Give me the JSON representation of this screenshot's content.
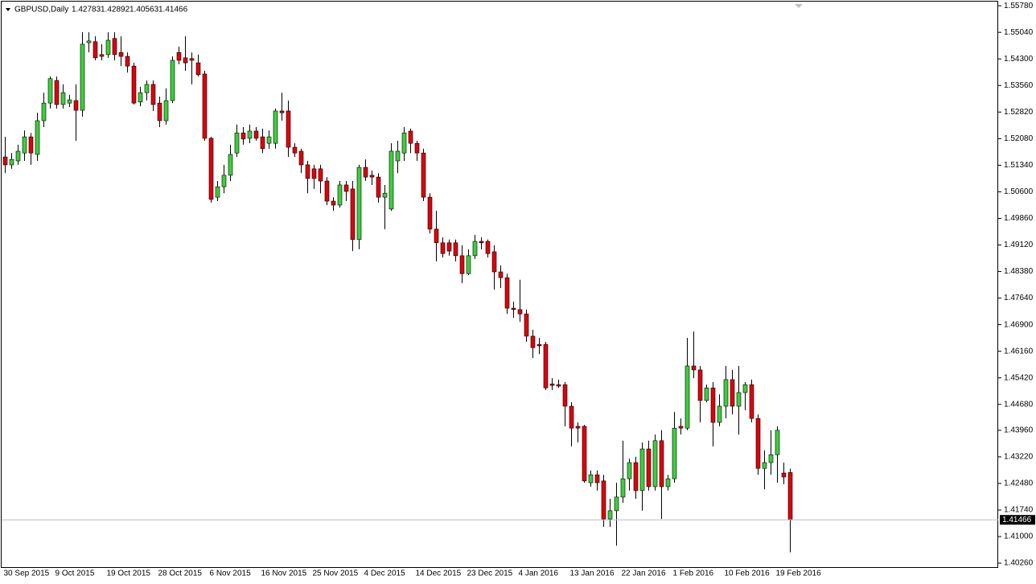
{
  "chart_data": {
    "type": "candlestick",
    "symbol_title": "GBPUSD,Daily",
    "colors": {
      "up": "#3ccf3c",
      "down": "#e0000b",
      "wick": "#000000"
    },
    "ylim": [
      1.4015,
      1.5594
    ],
    "yticks": [
      {
        "value": 1.5578,
        "label": "1.55780"
      },
      {
        "value": 1.5504,
        "label": "1.55040"
      },
      {
        "value": 1.543,
        "label": "1.54300"
      },
      {
        "value": 1.5356,
        "label": "1.53560"
      },
      {
        "value": 1.5282,
        "label": "1.52820"
      },
      {
        "value": 1.5208,
        "label": "1.52080"
      },
      {
        "value": 1.5134,
        "label": "1.51340"
      },
      {
        "value": 1.506,
        "label": "1.50600"
      },
      {
        "value": 1.4986,
        "label": "1.49860"
      },
      {
        "value": 1.4912,
        "label": "1.49120"
      },
      {
        "value": 1.4838,
        "label": "1.48380"
      },
      {
        "value": 1.4764,
        "label": "1.47640"
      },
      {
        "value": 1.469,
        "label": "1.46900"
      },
      {
        "value": 1.4616,
        "label": "1.46160"
      },
      {
        "value": 1.4542,
        "label": "1.45420"
      },
      {
        "value": 1.4468,
        "label": "1.44680"
      },
      {
        "value": 1.4396,
        "label": "1.43960"
      },
      {
        "value": 1.4322,
        "label": "1.43220"
      },
      {
        "value": 1.4248,
        "label": "1.42480"
      },
      {
        "value": 1.4174,
        "label": "1.41740"
      },
      {
        "value": 1.41,
        "label": "1.41000"
      },
      {
        "value": 1.4026,
        "label": "1.40260"
      }
    ],
    "categories": [
      "30 Sep 2015",
      null,
      null,
      null,
      null,
      null,
      null,
      null,
      "9 Oct 2015",
      null,
      null,
      null,
      null,
      null,
      null,
      null,
      "19 Oct 2015",
      null,
      null,
      null,
      null,
      null,
      null,
      null,
      "28 Oct 2015",
      null,
      null,
      null,
      null,
      null,
      null,
      null,
      "6 Nov 2015",
      null,
      null,
      null,
      null,
      null,
      null,
      null,
      "16 Nov 2015",
      null,
      null,
      null,
      null,
      null,
      null,
      null,
      "25 Nov 2015",
      null,
      null,
      null,
      null,
      null,
      null,
      null,
      "4 Dec 2015",
      null,
      null,
      null,
      null,
      null,
      null,
      null,
      "14 Dec 2015",
      null,
      null,
      null,
      null,
      null,
      null,
      null,
      "23 Dec 2015",
      null,
      null,
      null,
      null,
      null,
      null,
      null,
      "4 Jan 2016",
      null,
      null,
      null,
      null,
      null,
      null,
      null,
      "13 Jan 2016",
      null,
      null,
      null,
      null,
      null,
      null,
      null,
      "22 Jan 2016",
      null,
      null,
      null,
      null,
      null,
      null,
      null,
      "1 Feb 2016",
      null,
      null,
      null,
      null,
      null,
      null,
      null,
      "10 Feb 2016",
      null,
      null,
      null,
      null,
      null,
      null,
      null,
      "19 Feb 2016",
      null,
      null
    ],
    "open": [
      1.5157,
      1.5135,
      1.5146,
      1.5168,
      1.5213,
      1.5164,
      1.5258,
      1.5307,
      1.537,
      1.5303,
      1.5307,
      1.5314,
      1.5287,
      1.5475,
      1.5478,
      1.5442,
      1.5442,
      1.5487,
      1.5448,
      1.5437,
      1.541,
      1.531,
      1.5336,
      1.5359,
      1.5307,
      1.5258,
      1.5314,
      1.5448,
      1.5433,
      1.5431,
      1.5419,
      1.5388,
      1.5209,
      1.5045,
      1.5074,
      1.5106,
      1.5168,
      1.5224,
      1.5209,
      1.5229,
      1.5213,
      1.5195,
      1.5195,
      1.5285,
      1.5285,
      1.5184,
      1.5173,
      1.5135,
      1.5124,
      1.5124,
      1.509,
      1.5034,
      1.5023,
      1.5079,
      1.5068,
      1.4927,
      1.5128,
      1.5106,
      1.5101,
      1.5045,
      1.5012,
      1.5146,
      1.5168,
      1.5229,
      1.5195,
      1.5168,
      1.5045,
      1.4956,
      1.4918,
      1.4918,
      1.4918,
      1.4882,
      1.4832,
      1.4882,
      1.4922,
      1.4922,
      1.4893,
      1.4837,
      1.4821,
      1.4736,
      1.4732,
      1.472,
      1.4658,
      1.4635,
      1.4635,
      1.4525,
      1.4523,
      1.4523,
      1.4463,
      1.4407,
      1.4407,
      1.425,
      1.4272,
      1.4255,
      1.4149,
      1.4172,
      1.421,
      1.4261,
      1.4306,
      1.4228,
      1.4344,
      1.4239,
      1.4367,
      1.4239,
      1.4261,
      1.4407,
      1.4402,
      1.4575,
      1.4564,
      1.4479,
      1.4514,
      1.4418,
      1.4463,
      1.4537,
      1.4463,
      1.4501,
      1.4523,
      1.4429,
      1.429,
      1.4306,
      1.4328,
      1.4277,
      1.42783
    ],
    "high": [
      1.5213,
      1.5168,
      1.5191,
      1.5231,
      1.5224,
      1.528,
      1.5336,
      1.5381,
      1.5381,
      1.5359,
      1.533,
      1.5359,
      1.5504,
      1.5504,
      1.5493,
      1.5471,
      1.5504,
      1.5504,
      1.5493,
      1.5448,
      1.5419,
      1.5352,
      1.537,
      1.537,
      1.5325,
      1.5348,
      1.5437,
      1.5464,
      1.5493,
      1.5448,
      1.5442,
      1.5397,
      1.5213,
      1.509,
      1.5135,
      1.5191,
      1.5247,
      1.524,
      1.5247,
      1.524,
      1.5236,
      1.5231,
      1.5292,
      1.5336,
      1.5314,
      1.5195,
      1.518,
      1.5146,
      1.5135,
      1.5135,
      1.5101,
      1.5045,
      1.509,
      1.509,
      1.509,
      1.5135,
      1.515,
      1.5119,
      1.5112,
      1.5079,
      1.5195,
      1.5202,
      1.524,
      1.5236,
      1.5202,
      1.518,
      1.5056,
      1.5007,
      1.4933,
      1.4927,
      1.4927,
      1.4911,
      1.49,
      1.494,
      1.4933,
      1.4927,
      1.4911,
      1.4855,
      1.4832,
      1.4754,
      1.4815,
      1.4732,
      1.4676,
      1.4653,
      1.4642,
      1.4541,
      1.4537,
      1.453,
      1.4474,
      1.4418,
      1.4411,
      1.4284,
      1.4284,
      1.4272,
      1.4205,
      1.425,
      1.4367,
      1.4317,
      1.4322,
      1.4362,
      1.4367,
      1.4384,
      1.4396,
      1.4272,
      1.4447,
      1.4429,
      1.4653,
      1.4671,
      1.4575,
      1.4523,
      1.453,
      1.4496,
      1.4575,
      1.4564,
      1.4575,
      1.453,
      1.4537,
      1.444,
      1.434,
      1.4396,
      1.4407,
      1.4306,
      1.42892
    ],
    "low": [
      1.5112,
      1.5124,
      1.5135,
      1.5146,
      1.5135,
      1.5146,
      1.524,
      1.5292,
      1.5292,
      1.5292,
      1.5296,
      1.5202,
      1.5269,
      1.5448,
      1.5426,
      1.5426,
      1.5433,
      1.5426,
      1.541,
      1.5392,
      1.5303,
      1.5298,
      1.5314,
      1.5285,
      1.524,
      1.5247,
      1.5307,
      1.5415,
      1.5397,
      1.5359,
      1.5381,
      1.5202,
      1.503,
      1.5034,
      1.5056,
      1.509,
      1.5157,
      1.5191,
      1.5195,
      1.5202,
      1.5168,
      1.518,
      1.518,
      1.5258,
      1.5157,
      1.5157,
      1.5112,
      1.5056,
      1.5068,
      1.5056,
      1.5023,
      1.5007,
      1.5016,
      1.5034,
      1.4895,
      1.49,
      1.509,
      1.5079,
      1.503,
      1.4956,
      1.5007,
      1.5112,
      1.5146,
      1.5168,
      1.5146,
      1.5034,
      1.4944,
      1.4866,
      1.4877,
      1.4882,
      1.4866,
      1.4806,
      1.4828,
      1.4873,
      1.49,
      1.4877,
      1.4788,
      1.4792,
      1.472,
      1.4709,
      1.4698,
      1.4642,
      1.4597,
      1.4608,
      1.4508,
      1.4508,
      1.4514,
      1.4407,
      1.4351,
      1.4362,
      1.425,
      1.4239,
      1.4228,
      1.4127,
      1.4127,
      1.4075,
      1.4194,
      1.4228,
      1.4205,
      1.4172,
      1.4228,
      1.4228,
      1.4149,
      1.4228,
      1.425,
      1.4384,
      1.4396,
      1.4541,
      1.4418,
      1.4474,
      1.4351,
      1.4407,
      1.4429,
      1.444,
      1.4384,
      1.4452,
      1.4418,
      1.4272,
      1.4232,
      1.4272,
      1.425,
      1.4246,
      1.40563
    ],
    "close": [
      1.5135,
      1.515,
      1.5173,
      1.5213,
      1.5168,
      1.5258,
      1.5307,
      1.5375,
      1.5303,
      1.5336,
      1.5316,
      1.5287,
      1.5471,
      1.548,
      1.5433,
      1.5437,
      1.5482,
      1.5442,
      1.5437,
      1.541,
      1.5307,
      1.5336,
      1.5359,
      1.5303,
      1.5258,
      1.5314,
      1.5426,
      1.5426,
      1.5419,
      1.5426,
      1.5386,
      1.5209,
      1.5039,
      1.5074,
      1.5106,
      1.5164,
      1.5224,
      1.5207,
      1.5229,
      1.5209,
      1.518,
      1.5213,
      1.5285,
      1.528,
      1.5184,
      1.5168,
      1.5135,
      1.5097,
      1.5097,
      1.509,
      1.5034,
      1.5023,
      1.5079,
      1.5061,
      1.4927,
      1.5128,
      1.5101,
      1.5101,
      1.5045,
      1.5056,
      1.5173,
      1.5173,
      1.5224,
      1.5195,
      1.5168,
      1.5045,
      1.4956,
      1.4918,
      1.4888,
      1.4895,
      1.4882,
      1.4832,
      1.4882,
      1.4922,
      1.4918,
      1.4888,
      1.4837,
      1.4821,
      1.4736,
      1.4732,
      1.472,
      1.4658,
      1.4626,
      1.4631,
      1.4514,
      1.4521,
      1.4519,
      1.4463,
      1.4402,
      1.4402,
      1.4255,
      1.4272,
      1.425,
      1.4149,
      1.4172,
      1.421,
      1.4261,
      1.4306,
      1.4228,
      1.4344,
      1.4239,
      1.4367,
      1.4239,
      1.4261,
      1.4402,
      1.4402,
      1.4575,
      1.4564,
      1.4479,
      1.4514,
      1.4418,
      1.4463,
      1.4537,
      1.4463,
      1.4501,
      1.4523,
      1.4429,
      1.429,
      1.4306,
      1.4328,
      1.4396,
      1.4266,
      1.41466
    ]
  }
}
